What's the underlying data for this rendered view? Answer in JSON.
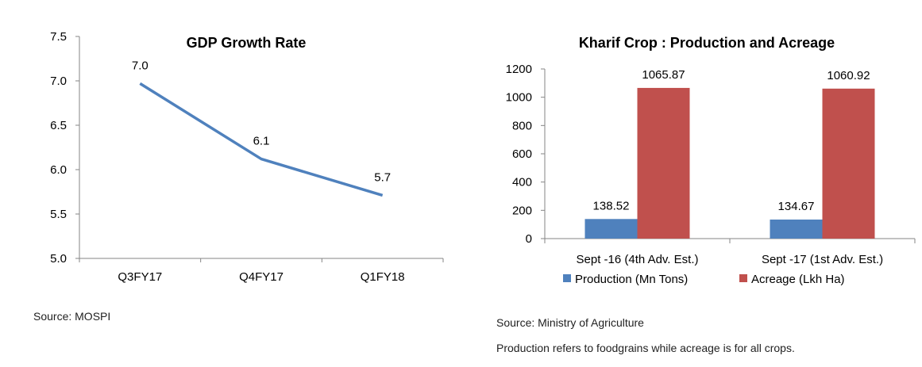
{
  "chart_data": [
    {
      "type": "line",
      "title": "GDP Growth Rate",
      "xlabel": "",
      "ylabel": "",
      "categories": [
        "Q3FY17",
        "Q4FY17",
        "Q1FY18"
      ],
      "values": [
        6.97,
        6.12,
        5.71
      ],
      "data_labels": [
        "7.0",
        "6.1",
        "5.7"
      ],
      "ylim": [
        5.0,
        7.5
      ],
      "yticks": [
        "5.0",
        "5.5",
        "6.0",
        "6.5",
        "7.0",
        "7.5"
      ],
      "grid": false,
      "line_color": "#4f81bd"
    },
    {
      "type": "bar",
      "title": "Kharif Crop : Production and Acreage",
      "xlabel": "",
      "ylabel": "",
      "categories": [
        "Sept -16 (4th Adv. Est.)",
        "Sept -17 (1st Adv. Est.)"
      ],
      "series": [
        {
          "name": "Production (Mn Tons)",
          "values": [
            138.52,
            134.67
          ],
          "labels": [
            "138.52",
            "134.67"
          ],
          "color": "#4f81bd"
        },
        {
          "name": "Acreage (Lkh Ha)",
          "values": [
            1065.87,
            1060.92
          ],
          "labels": [
            "1065.87",
            "1060.92"
          ],
          "color": "#c0504d"
        }
      ],
      "ylim": [
        0,
        1200
      ],
      "yticks": [
        "0",
        "200",
        "400",
        "600",
        "800",
        "1000",
        "1200"
      ],
      "grid": false,
      "legend": "bottom"
    }
  ],
  "notes": {
    "left_source": "Source: MOSPI",
    "right_source": "Source: Ministry of Agriculture",
    "right_footnote": "Production refers to foodgrains while acreage is for all crops."
  }
}
